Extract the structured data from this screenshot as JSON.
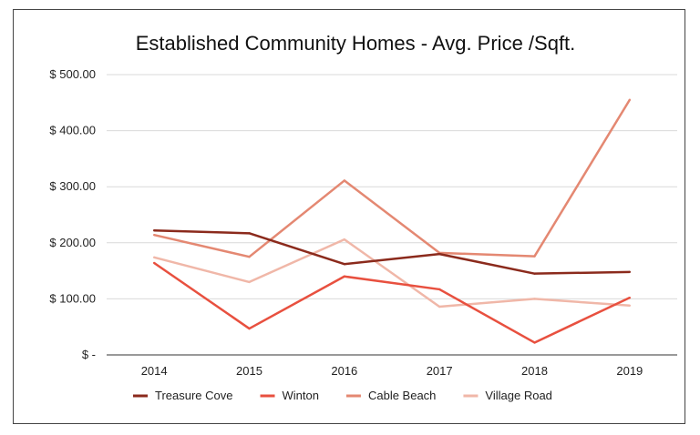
{
  "chart_data": {
    "type": "line",
    "title": "Established Community Homes - Avg. Price /Sqft.",
    "xlabel": "",
    "ylabel": "",
    "categories": [
      "2014",
      "2015",
      "2016",
      "2017",
      "2018",
      "2019"
    ],
    "y_ticks": [
      "$ -",
      "$ 100.00",
      "$ 200.00",
      "$ 300.00",
      "$ 400.00",
      "$ 500.00"
    ],
    "ylim": [
      0,
      500
    ],
    "grid": true,
    "legend_position": "bottom",
    "series": [
      {
        "name": "Treasure Cove",
        "color": "#8B2A1C",
        "values": [
          222,
          217,
          162,
          180,
          145,
          148
        ]
      },
      {
        "name": "Winton",
        "color": "#E8503F",
        "values": [
          164,
          47,
          140,
          117,
          22,
          102
        ]
      },
      {
        "name": "Cable Beach",
        "color": "#E48872",
        "values": [
          214,
          175,
          311,
          182,
          176,
          455
        ]
      },
      {
        "name": "Village Road",
        "color": "#F0B7A8",
        "values": [
          174,
          130,
          206,
          86,
          100,
          88
        ]
      }
    ]
  }
}
